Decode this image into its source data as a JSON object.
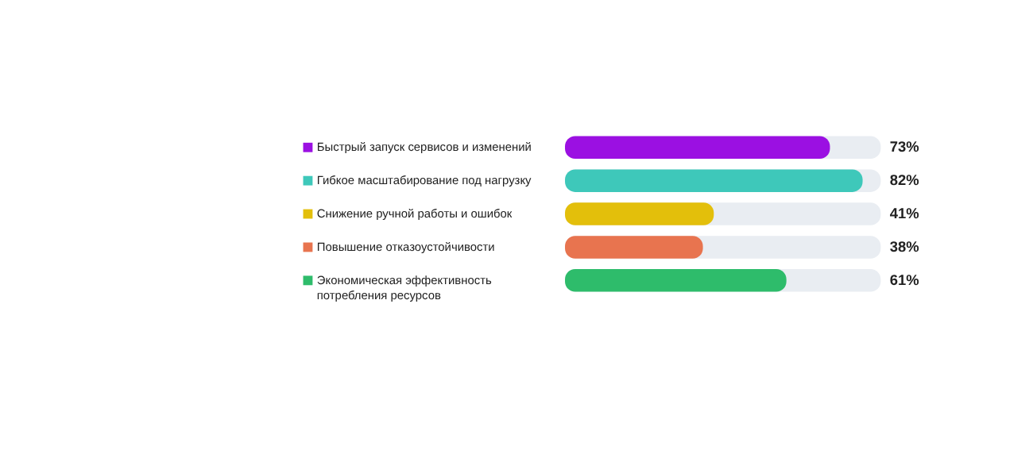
{
  "chart_data": {
    "type": "bar",
    "orientation": "horizontal",
    "categories": [
      "Быстрый запуск сервисов и изменений",
      "Гибкое масштабирование под нагрузку",
      "Снижение ручной работы и ошибок",
      "Повышение отказоустойчивости",
      "Экономическая эффективность потребления ресурсов"
    ],
    "values": [
      73,
      82,
      41,
      38,
      61
    ],
    "value_labels": [
      "73%",
      "82%",
      "41%",
      "38%",
      "61%"
    ],
    "colors": [
      "#9b10e2",
      "#3ec8ba",
      "#e3bf0b",
      "#e8744f",
      "#2ebc6b"
    ],
    "xlim": [
      0,
      87
    ],
    "grid": false
  }
}
